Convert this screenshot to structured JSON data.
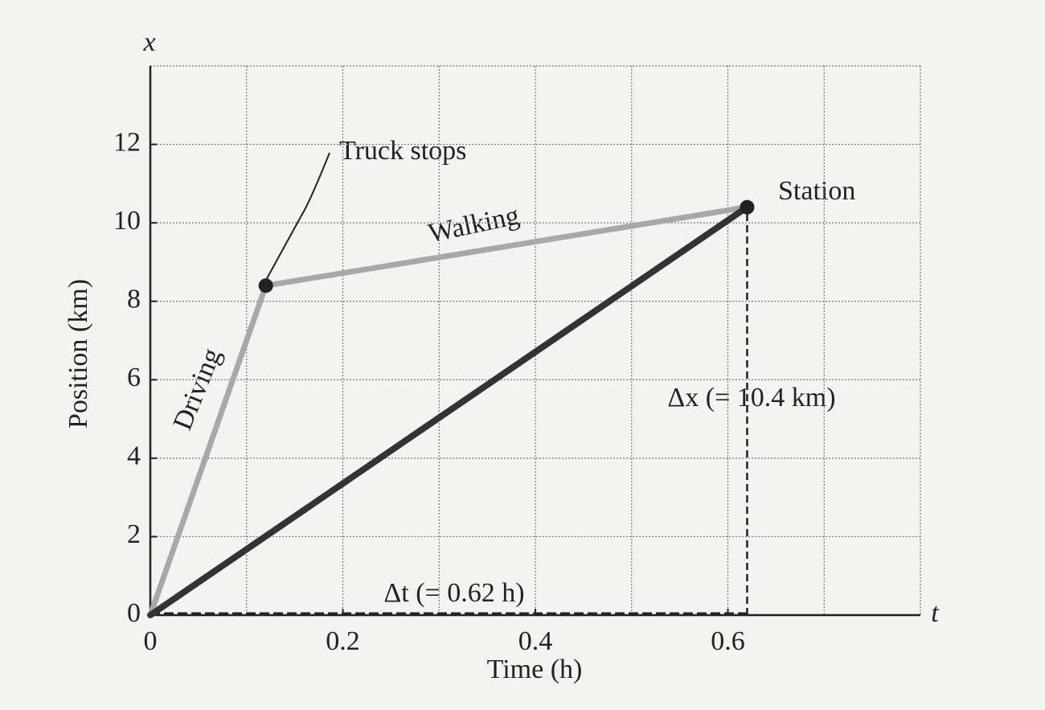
{
  "chart_data": {
    "type": "line",
    "x_axis_symbol": "t",
    "y_axis_symbol": "x",
    "xlabel": "Time (h)",
    "ylabel": "Position (km)",
    "xlim": [
      0,
      0.8
    ],
    "ylim": [
      0,
      14
    ],
    "xticks": [
      0,
      0.2,
      0.4,
      0.6
    ],
    "yticks": [
      0,
      2,
      4,
      6,
      8,
      10,
      12
    ],
    "xgrid": [
      0.1,
      0.2,
      0.3,
      0.4,
      0.5,
      0.6,
      0.7,
      0.8
    ],
    "ygrid": [
      2,
      4,
      6,
      8,
      10,
      12,
      14
    ],
    "grid": true,
    "series": [
      {
        "x": [
          0,
          0.12,
          0.62
        ],
        "values": [
          0,
          8.4,
          10.4
        ],
        "color": "#a8a8a8"
      },
      {
        "x": [
          0,
          0.62
        ],
        "values": [
          0,
          10.4
        ],
        "color": "#333333"
      }
    ],
    "annotations": {
      "truck_stops": "Truck stops",
      "station": "Station",
      "walking": "Walking",
      "driving": "Driving",
      "delta_x": "Δx (= 10.4 km)",
      "delta_t": "Δt (= 0.62 h)"
    }
  }
}
